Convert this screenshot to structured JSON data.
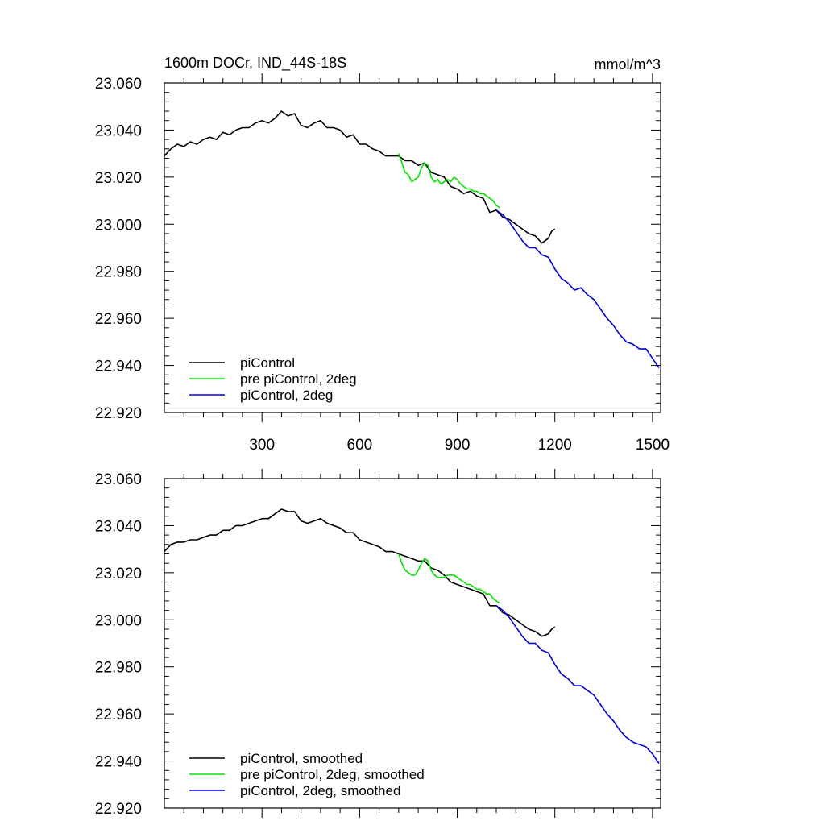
{
  "title_left": "1600m DOCr, IND_44S-18S",
  "title_right": "mmol/m^3",
  "chart_data": [
    {
      "type": "line",
      "panel": "top",
      "title": "1600m DOCr, IND_44S-18S",
      "units": "mmol/m^3",
      "xlabel": "",
      "ylabel": "",
      "xlim": [
        0,
        1525
      ],
      "ylim": [
        22.92,
        23.06
      ],
      "x_ticks": [
        300,
        600,
        900,
        1200,
        1500
      ],
      "x_tick_labels": [
        "300",
        "600",
        "900",
        "1200",
        "1500"
      ],
      "y_ticks": [
        22.92,
        22.94,
        22.96,
        22.98,
        23.0,
        23.02,
        23.04,
        23.06
      ],
      "y_tick_labels": [
        "22.920",
        "22.940",
        "22.960",
        "22.980",
        "23.000",
        "23.020",
        "23.040",
        "23.060"
      ],
      "legend_position": "bottom-left",
      "grid": false,
      "series": [
        {
          "name": "piControl",
          "color": "#000000",
          "x": [
            0,
            20,
            40,
            60,
            80,
            100,
            120,
            140,
            160,
            180,
            200,
            220,
            240,
            260,
            280,
            300,
            320,
            340,
            360,
            380,
            400,
            420,
            440,
            460,
            480,
            500,
            520,
            540,
            560,
            580,
            600,
            620,
            640,
            660,
            680,
            700,
            720,
            740,
            760,
            780,
            800,
            820,
            840,
            860,
            880,
            900,
            920,
            940,
            960,
            980,
            1000,
            1020,
            1040,
            1060,
            1080,
            1100,
            1120,
            1140,
            1160,
            1180,
            1190,
            1200
          ],
          "y": [
            23.029,
            23.032,
            23.034,
            23.033,
            23.035,
            23.034,
            23.036,
            23.037,
            23.036,
            23.039,
            23.038,
            23.04,
            23.041,
            23.041,
            23.043,
            23.044,
            23.043,
            23.045,
            23.048,
            23.046,
            23.047,
            23.042,
            23.041,
            23.043,
            23.044,
            23.041,
            23.041,
            23.04,
            23.037,
            23.038,
            23.034,
            23.034,
            23.032,
            23.031,
            23.029,
            23.029,
            23.029,
            23.027,
            23.027,
            23.025,
            23.026,
            23.022,
            23.021,
            23.02,
            23.016,
            23.015,
            23.013,
            23.014,
            23.012,
            23.011,
            23.005,
            23.006,
            23.003,
            23.002,
            23.0,
            22.998,
            22.996,
            22.995,
            22.992,
            22.994,
            22.997,
            22.998
          ]
        },
        {
          "name": "pre piControl, 2deg",
          "color": "#00e600",
          "x": [
            720,
            730,
            740,
            750,
            760,
            770,
            780,
            790,
            800,
            810,
            820,
            830,
            840,
            850,
            860,
            870,
            880,
            890,
            900,
            910,
            920,
            930,
            940,
            950,
            960,
            970,
            980,
            990,
            1000,
            1010,
            1020,
            1030
          ],
          "y": [
            23.03,
            23.026,
            23.022,
            23.021,
            23.018,
            23.019,
            23.02,
            23.024,
            23.026,
            23.025,
            23.02,
            23.018,
            23.019,
            23.017,
            23.018,
            23.019,
            23.018,
            23.02,
            23.019,
            23.017,
            23.016,
            23.015,
            23.015,
            23.014,
            23.014,
            23.013,
            23.013,
            23.012,
            23.011,
            23.01,
            23.008,
            23.007
          ]
        },
        {
          "name": "piControl, 2deg",
          "color": "#0000e6",
          "x": [
            1020,
            1040,
            1060,
            1080,
            1100,
            1120,
            1140,
            1160,
            1180,
            1200,
            1220,
            1240,
            1260,
            1280,
            1300,
            1320,
            1340,
            1360,
            1380,
            1400,
            1420,
            1440,
            1460,
            1480,
            1500,
            1510,
            1520
          ],
          "y": [
            23.006,
            23.004,
            23.001,
            22.997,
            22.993,
            22.99,
            22.99,
            22.987,
            22.986,
            22.981,
            22.977,
            22.975,
            22.972,
            22.973,
            22.97,
            22.968,
            22.964,
            22.96,
            22.957,
            22.953,
            22.95,
            22.949,
            22.947,
            22.947,
            22.943,
            22.941,
            22.939
          ]
        }
      ]
    },
    {
      "type": "line",
      "panel": "bottom",
      "title": "",
      "xlabel": "",
      "ylabel": "",
      "xlim": [
        0,
        1525
      ],
      "ylim": [
        22.92,
        23.06
      ],
      "x_ticks": [
        300,
        600,
        900,
        1200,
        1500
      ],
      "x_tick_labels": [],
      "y_ticks": [
        22.92,
        22.94,
        22.96,
        22.98,
        23.0,
        23.02,
        23.04,
        23.06
      ],
      "y_tick_labels": [
        "22.920",
        "22.940",
        "22.960",
        "22.980",
        "23.000",
        "23.020",
        "23.040",
        "23.060"
      ],
      "legend_position": "bottom-left",
      "grid": false,
      "series": [
        {
          "name": "piControl, smoothed",
          "color": "#000000",
          "x": [
            0,
            20,
            40,
            60,
            80,
            100,
            120,
            140,
            160,
            180,
            200,
            220,
            240,
            260,
            280,
            300,
            320,
            340,
            360,
            380,
            400,
            420,
            440,
            460,
            480,
            500,
            520,
            540,
            560,
            580,
            600,
            620,
            640,
            660,
            680,
            700,
            720,
            740,
            760,
            780,
            800,
            820,
            840,
            860,
            880,
            900,
            920,
            940,
            960,
            980,
            1000,
            1020,
            1040,
            1060,
            1080,
            1100,
            1120,
            1140,
            1160,
            1180,
            1190,
            1200
          ],
          "y": [
            23.029,
            23.032,
            23.033,
            23.033,
            23.034,
            23.034,
            23.035,
            23.036,
            23.036,
            23.038,
            23.038,
            23.04,
            23.04,
            23.041,
            23.042,
            23.043,
            23.043,
            23.045,
            23.047,
            23.046,
            23.046,
            23.042,
            23.041,
            23.042,
            23.043,
            23.041,
            23.04,
            23.039,
            23.037,
            23.037,
            23.034,
            23.033,
            23.032,
            23.031,
            23.029,
            23.029,
            23.028,
            23.027,
            23.026,
            23.025,
            23.025,
            23.022,
            23.021,
            23.019,
            23.016,
            23.015,
            23.014,
            23.013,
            23.012,
            23.011,
            23.006,
            23.006,
            23.003,
            23.002,
            23.0,
            22.998,
            22.996,
            22.995,
            22.993,
            22.994,
            22.996,
            22.997
          ]
        },
        {
          "name": "pre piControl, 2deg, smoothed",
          "color": "#00e600",
          "x": [
            720,
            730,
            740,
            750,
            760,
            770,
            780,
            790,
            800,
            810,
            820,
            830,
            840,
            850,
            860,
            870,
            880,
            890,
            900,
            910,
            920,
            930,
            940,
            950,
            960,
            970,
            980,
            990,
            1000,
            1010,
            1020,
            1030
          ],
          "y": [
            23.028,
            23.024,
            23.021,
            23.02,
            23.019,
            23.019,
            23.021,
            23.024,
            23.026,
            23.025,
            23.021,
            23.019,
            23.018,
            23.018,
            23.018,
            23.019,
            23.019,
            23.019,
            23.018,
            23.017,
            23.016,
            23.015,
            23.015,
            23.014,
            23.013,
            23.013,
            23.012,
            23.011,
            23.011,
            23.009,
            23.008,
            23.007
          ]
        },
        {
          "name": "piControl, 2deg, smoothed",
          "color": "#0000e6",
          "x": [
            1020,
            1040,
            1060,
            1080,
            1100,
            1120,
            1140,
            1160,
            1180,
            1200,
            1220,
            1240,
            1260,
            1280,
            1300,
            1320,
            1340,
            1360,
            1380,
            1400,
            1420,
            1440,
            1460,
            1480,
            1500,
            1510,
            1520
          ],
          "y": [
            23.006,
            23.004,
            23.001,
            22.997,
            22.993,
            22.99,
            22.99,
            22.987,
            22.986,
            22.981,
            22.977,
            22.975,
            22.972,
            22.972,
            22.97,
            22.968,
            22.964,
            22.96,
            22.957,
            22.953,
            22.95,
            22.948,
            22.947,
            22.946,
            22.943,
            22.941,
            22.939
          ]
        }
      ]
    }
  ]
}
